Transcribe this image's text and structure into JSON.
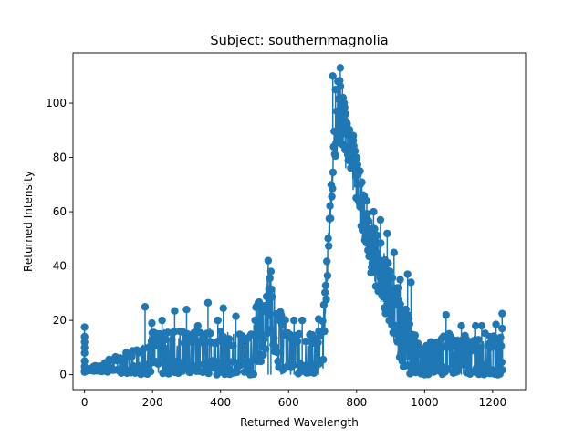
{
  "chart_data": {
    "type": "line",
    "title": "Subject: southernmagnolia",
    "xlabel": "Returned Wavelength",
    "ylabel": "Returned Intensity",
    "xlim": [
      -34,
      1297
    ],
    "ylim": [
      -5.5,
      118.5
    ],
    "xticks": [
      0,
      200,
      400,
      600,
      800,
      1000,
      1200
    ],
    "yticks": [
      0,
      20,
      40,
      60,
      80,
      100
    ],
    "grid": false,
    "series_color": "#1f77b4",
    "marker": "circle",
    "stem_points": [
      [
        0,
        17.5
      ],
      [
        0,
        14
      ],
      [
        0,
        12
      ],
      [
        0,
        10
      ],
      [
        0,
        8
      ],
      [
        0,
        5
      ],
      [
        0,
        3
      ],
      [
        0,
        1
      ],
      [
        178,
        25
      ],
      [
        198,
        19
      ],
      [
        228,
        20
      ],
      [
        265,
        23.5
      ],
      [
        300,
        24
      ],
      [
        333,
        18
      ],
      [
        363,
        26.5
      ],
      [
        392,
        20
      ],
      [
        408,
        24.5
      ],
      [
        445,
        21.5
      ],
      [
        540,
        42
      ],
      [
        548,
        38
      ],
      [
        578,
        22
      ],
      [
        616,
        20
      ],
      [
        640,
        20
      ],
      [
        688,
        20.5
      ],
      [
        1063,
        22
      ],
      [
        1108,
        18
      ],
      [
        1150,
        18
      ],
      [
        1168,
        18
      ],
      [
        1210,
        18.5
      ],
      [
        1228,
        22.5
      ],
      [
        1228,
        17
      ]
    ],
    "segments": [
      {
        "x": [
          0,
          178,
          185,
          195,
          205,
          215,
          225,
          235,
          245,
          255,
          265,
          275,
          285,
          295,
          305,
          315,
          325,
          335,
          345,
          355,
          365,
          375,
          385,
          395,
          405,
          415,
          425,
          435,
          445,
          455,
          465,
          475,
          485,
          495,
          505,
          515,
          522,
          530,
          538,
          545,
          552,
          560,
          568,
          576,
          584,
          592,
          600,
          608,
          616,
          624,
          632,
          640,
          648,
          656,
          664,
          672,
          680,
          688,
          695
        ],
        "low": [
          1.5,
          0,
          0,
          0,
          0,
          0,
          0,
          0,
          0,
          0,
          0,
          0,
          0,
          0,
          0,
          0,
          0,
          0,
          0,
          0,
          0,
          0,
          0,
          0,
          0,
          0,
          0,
          0,
          0,
          0,
          0,
          0,
          0,
          0,
          0,
          0,
          4,
          8,
          12,
          16,
          12,
          8,
          4,
          0,
          0,
          0,
          0,
          0,
          0,
          0,
          0,
          0,
          0,
          0,
          0,
          0,
          0,
          0,
          0
        ],
        "high": [
          1.5,
          12,
          14,
          16,
          17,
          15,
          16,
          17,
          16,
          18,
          17,
          16,
          18,
          17,
          16,
          17,
          16,
          17,
          18,
          16,
          17,
          18,
          16,
          17,
          16,
          15,
          17,
          16,
          15,
          16,
          17,
          15,
          17,
          20,
          26,
          30,
          32,
          34,
          36,
          38,
          34,
          30,
          27,
          24,
          23,
          20,
          17,
          14,
          18,
          16,
          15,
          14,
          16,
          15,
          17,
          15,
          16,
          17,
          18
        ]
      },
      {
        "x": [
          700,
          706,
          712,
          718,
          724,
          730,
          736,
          742,
          748,
          754,
          760,
          766,
          772,
          778,
          784,
          790,
          796,
          802,
          808,
          814,
          820,
          826,
          832,
          838,
          844,
          850,
          856,
          862,
          868,
          874,
          880,
          886,
          892,
          898,
          904,
          910,
          916,
          922,
          928,
          934,
          940,
          946,
          952,
          958,
          964,
          970,
          976,
          982,
          988,
          994,
          1000
        ],
        "low": [
          0,
          15,
          30,
          44,
          58,
          70,
          78,
          82,
          84,
          84,
          82,
          82,
          80,
          78,
          74,
          70,
          66,
          62,
          58,
          54,
          50,
          48,
          44,
          40,
          36,
          34,
          32,
          30,
          28,
          26,
          24,
          22,
          20,
          18,
          15,
          12,
          10,
          8,
          6,
          4,
          2,
          0,
          0,
          0,
          0,
          0,
          0,
          0,
          0,
          0,
          0
        ],
        "high": [
          20,
          30,
          42,
          56,
          70,
          84,
          96,
          104,
          108,
          110,
          106,
          100,
          96,
          92,
          90,
          88,
          84,
          80,
          76,
          72,
          68,
          64,
          62,
          60,
          58,
          56,
          54,
          52,
          50,
          48,
          46,
          44,
          42,
          40,
          38,
          36,
          34,
          32,
          30,
          28,
          26,
          24,
          22,
          20,
          18,
          16,
          14,
          12,
          10,
          8,
          8
        ]
      },
      {
        "x": [
          1000,
          1010,
          1020,
          1030,
          1040,
          1050,
          1060,
          1070,
          1080,
          1090,
          1100,
          1110,
          1120,
          1130,
          1140,
          1150,
          1160,
          1170,
          1180,
          1190,
          1200,
          1210,
          1220,
          1230
        ],
        "low": [
          0,
          0,
          0,
          0,
          0,
          0,
          0,
          0,
          0,
          0,
          0,
          0,
          0,
          0,
          0,
          0,
          0,
          0,
          0,
          0,
          0,
          0,
          0,
          0
        ],
        "high": [
          12,
          10,
          14,
          12,
          13,
          15,
          14,
          16,
          13,
          14,
          15,
          13,
          16,
          14,
          12,
          15,
          14,
          13,
          16,
          14,
          15,
          13,
          14,
          16
        ]
      }
    ],
    "peaks": [
      [
        730,
        110
      ],
      [
        738,
        105
      ],
      [
        745,
        108
      ],
      [
        752,
        113
      ],
      [
        760,
        102
      ],
      [
        768,
        96
      ],
      [
        790,
        88
      ],
      [
        810,
        75
      ],
      [
        830,
        64
      ],
      [
        850,
        60
      ],
      [
        870,
        57
      ],
      [
        890,
        52
      ],
      [
        910,
        45
      ],
      [
        928,
        35
      ],
      [
        950,
        37
      ],
      [
        960,
        34
      ]
    ]
  }
}
